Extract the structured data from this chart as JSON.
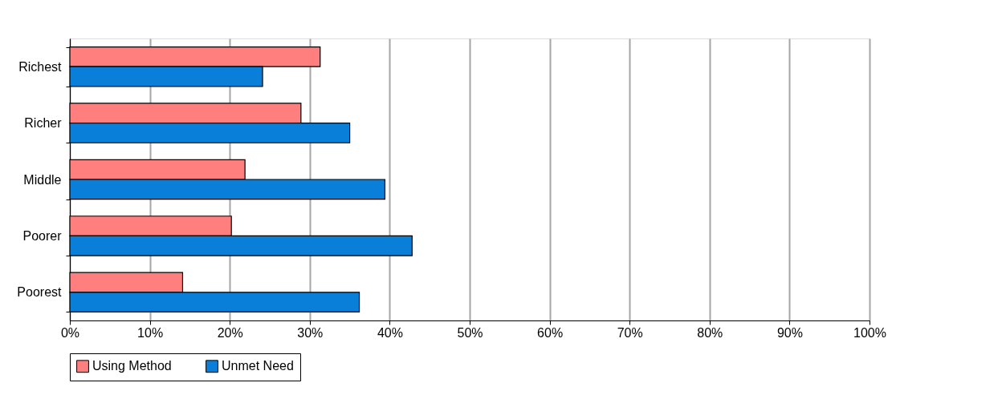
{
  "chart_data": {
    "type": "bar",
    "orientation": "horizontal",
    "categories": [
      "Richest",
      "Richer",
      "Middle",
      "Poorer",
      "Poorest"
    ],
    "series": [
      {
        "name": "Using Method",
        "color": "#ff7f7f",
        "values": [
          31.3,
          28.9,
          21.9,
          20.2,
          14.1
        ]
      },
      {
        "name": "Unmet Need",
        "color": "#0a7fd9",
        "values": [
          24.1,
          35.0,
          39.4,
          42.8,
          36.2
        ]
      }
    ],
    "xlim": [
      0,
      100
    ],
    "xticks": [
      {
        "value": 0,
        "label": "0%"
      },
      {
        "value": 10,
        "label": "10%"
      },
      {
        "value": 20,
        "label": "20%"
      },
      {
        "value": 30,
        "label": "30%"
      },
      {
        "value": 40,
        "label": "40%"
      },
      {
        "value": 50,
        "label": "50%"
      },
      {
        "value": 60,
        "label": "60%"
      },
      {
        "value": 70,
        "label": "70%"
      },
      {
        "value": 80,
        "label": "80%"
      },
      {
        "value": 90,
        "label": "90%"
      },
      {
        "value": 100,
        "label": "100%"
      }
    ],
    "grid": "x",
    "legend": "bottom"
  }
}
